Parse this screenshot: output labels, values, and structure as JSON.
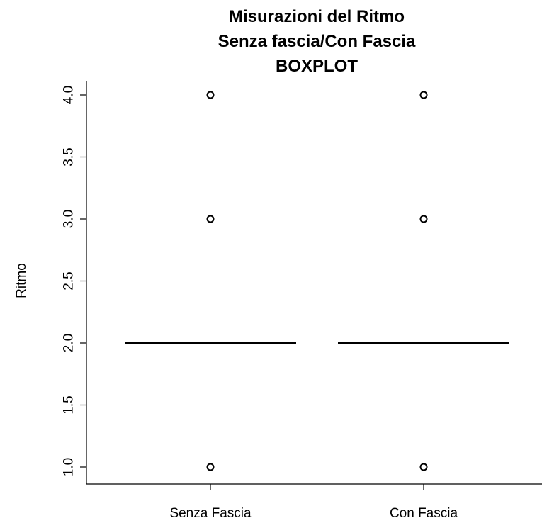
{
  "chart_data": {
    "type": "boxplot",
    "title_lines": [
      "Misurazioni del Ritmo",
      "Senza fascia/Con Fascia",
      "BOXPLOT"
    ],
    "xlabel": "",
    "ylabel": "Ritmo",
    "categories": [
      "Senza Fascia",
      "Con Fascia"
    ],
    "y_ticks": [
      "1.0",
      "1.5",
      "2.0",
      "2.5",
      "3.0",
      "3.5",
      "4.0"
    ],
    "ylim": [
      1.0,
      4.0
    ],
    "series": [
      {
        "category": "Senza Fascia",
        "median": 2.0,
        "q1": 2.0,
        "q3": 2.0,
        "whisker_low": 2.0,
        "whisker_high": 2.0,
        "outliers": [
          1.0,
          3.0,
          4.0
        ]
      },
      {
        "category": "Con Fascia",
        "median": 2.0,
        "q1": 2.0,
        "q3": 2.0,
        "whisker_low": 2.0,
        "whisker_high": 2.0,
        "outliers": [
          1.0,
          3.0,
          4.0
        ]
      }
    ],
    "grid": false,
    "legend": "none"
  }
}
